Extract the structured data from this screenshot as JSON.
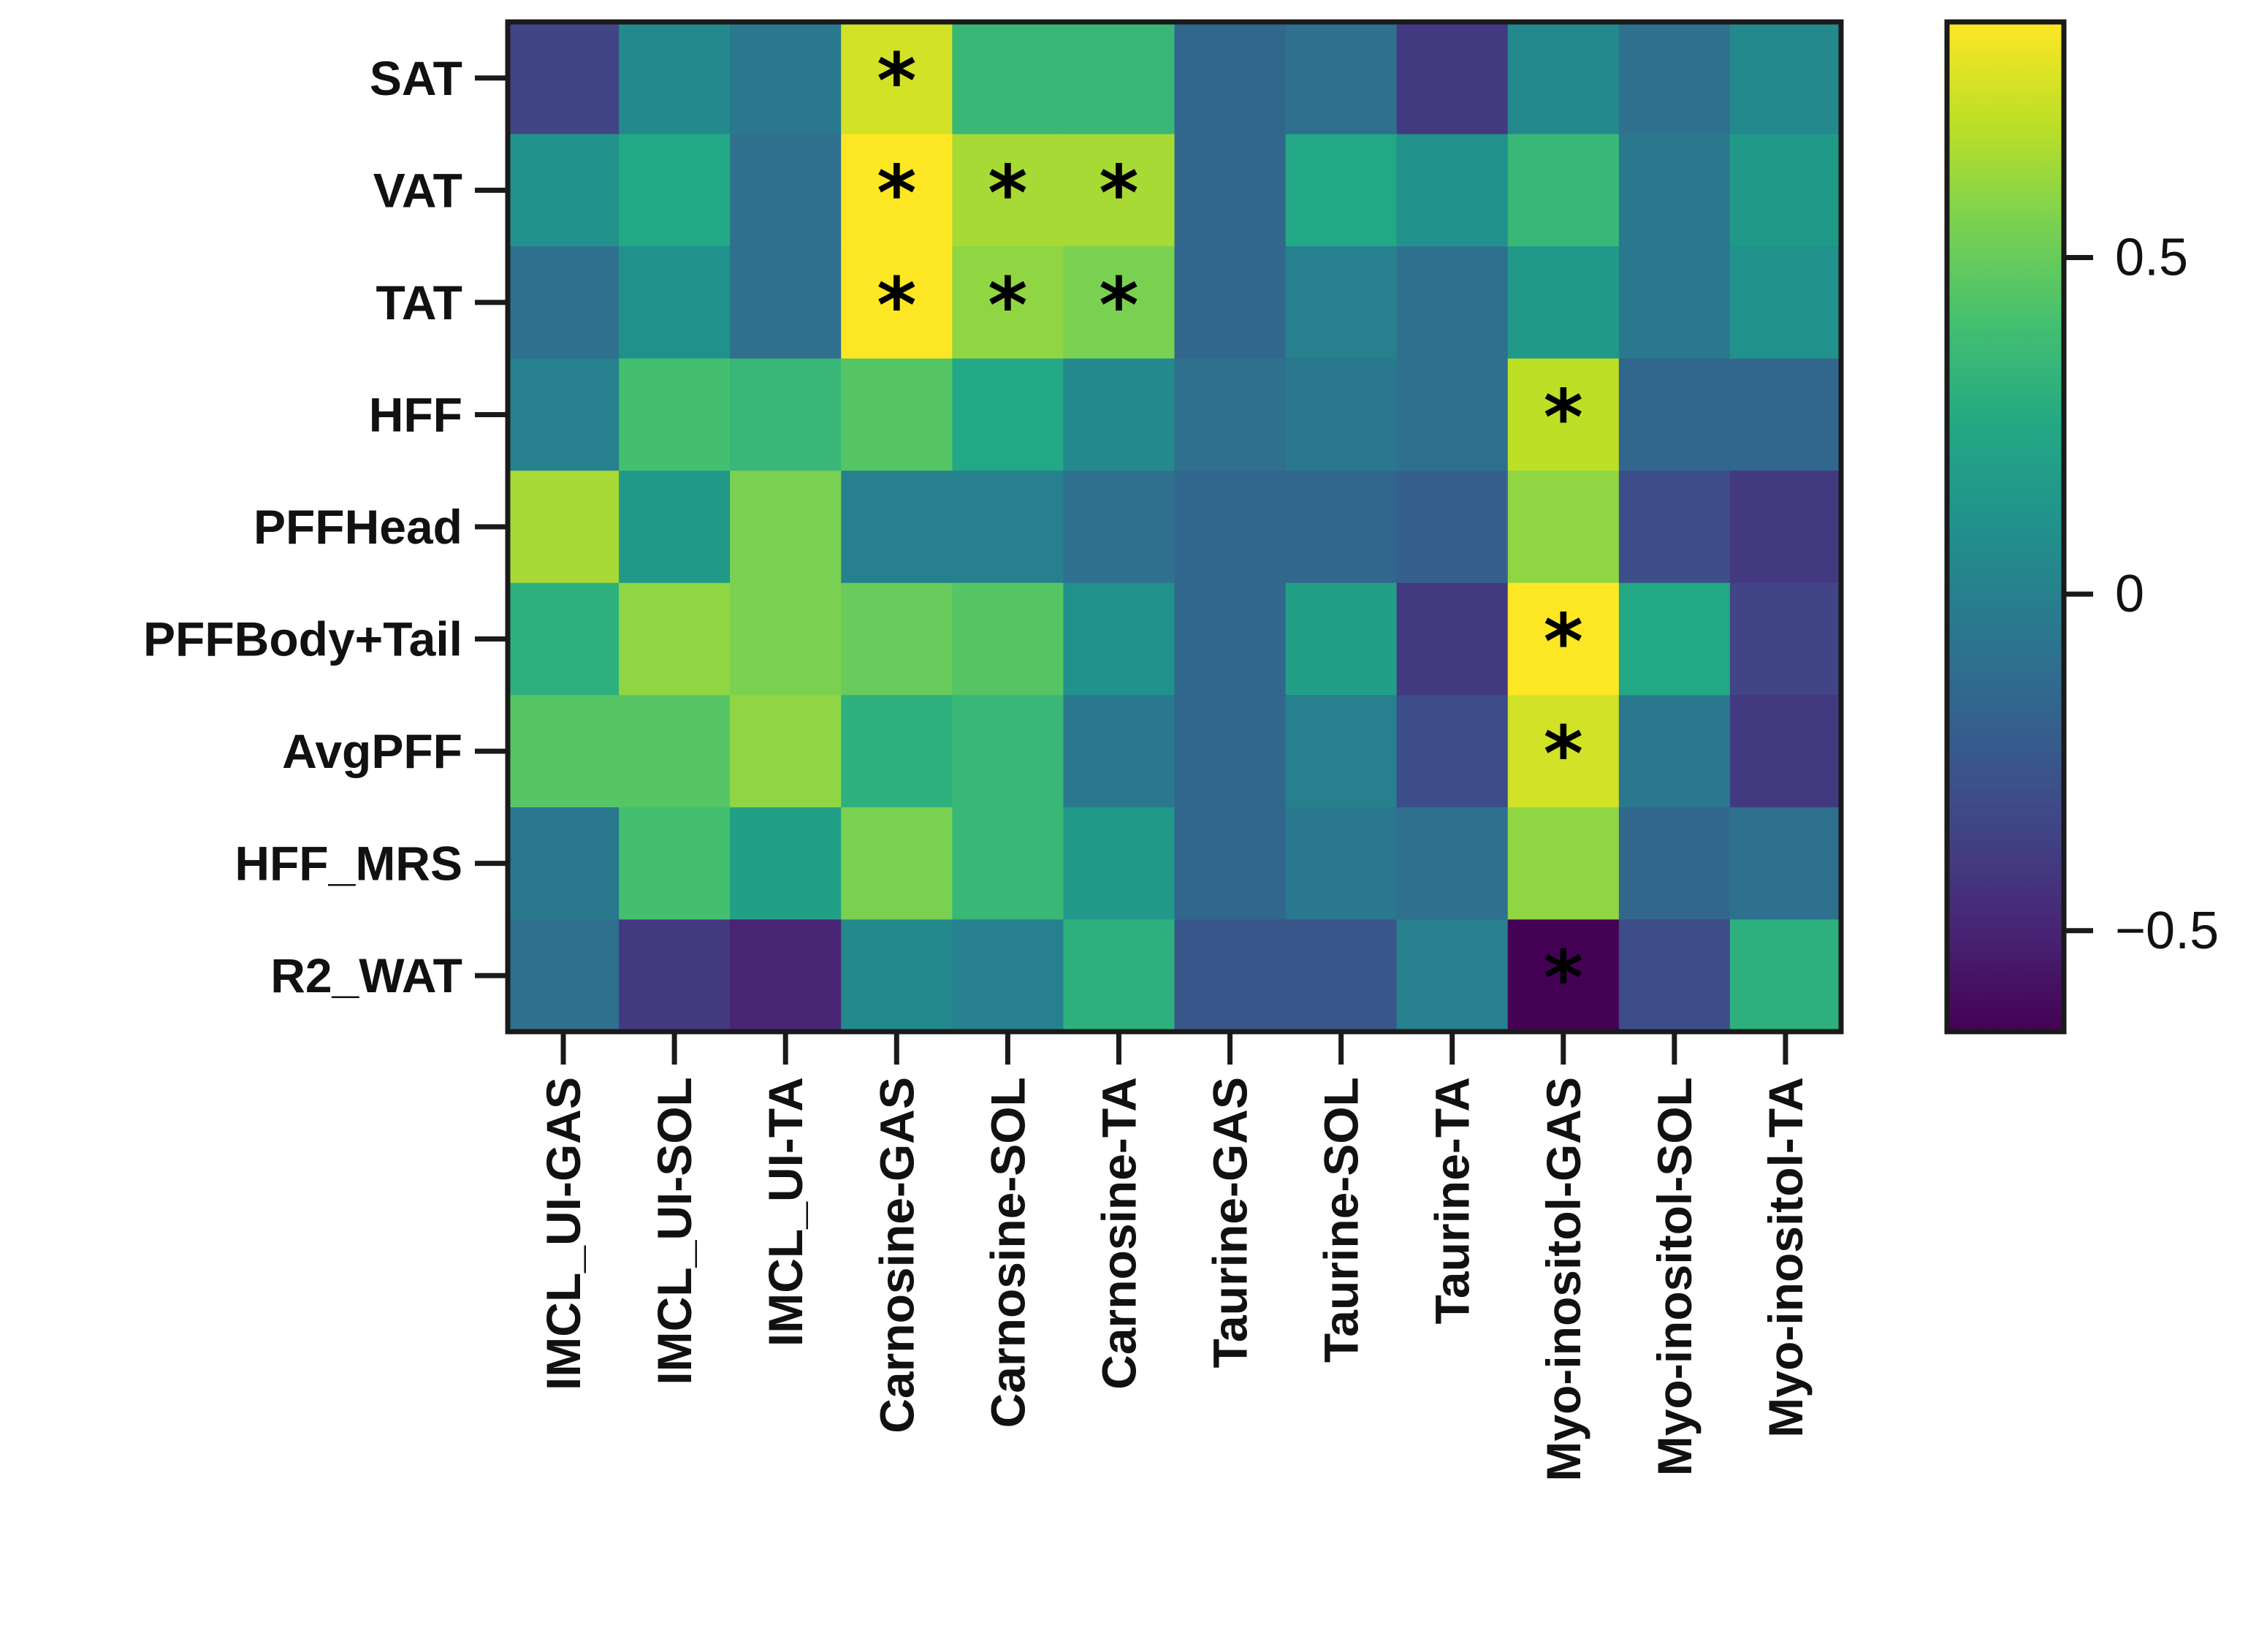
{
  "chart_data": {
    "type": "heatmap",
    "title": "",
    "xlabel": "",
    "ylabel": "",
    "rows": [
      "SAT",
      "VAT",
      "TAT",
      "HFF",
      "PFFHead",
      "PFFBody+Tail",
      "AvgPFF",
      "HFF_MRS",
      "R2_WAT"
    ],
    "columns": [
      "IMCL_UI-GAS",
      "IMCL_UI-SOL",
      "IMCL_UI-TA",
      "Carnosine-GAS",
      "Carnosine-SOL",
      "Carnosine-TA",
      "Taurine-GAS",
      "Taurine-SOL",
      "Taurine-TA",
      "Myo-inositol-GAS",
      "Myo-inositol-SOL",
      "Myo-inositol-TA"
    ],
    "values": [
      [
        -0.35,
        0.05,
        -0.05,
        0.75,
        0.35,
        0.35,
        -0.15,
        -0.1,
        -0.4,
        0.05,
        -0.1,
        0.05
      ],
      [
        0.1,
        0.25,
        -0.1,
        0.85,
        0.65,
        0.65,
        -0.15,
        0.25,
        0.1,
        0.35,
        -0.05,
        0.15
      ],
      [
        -0.1,
        0.1,
        -0.1,
        0.85,
        0.6,
        0.55,
        -0.15,
        0.0,
        -0.1,
        0.15,
        -0.05,
        0.1
      ],
      [
        0.0,
        0.4,
        0.35,
        0.45,
        0.25,
        0.05,
        -0.1,
        -0.05,
        -0.1,
        0.7,
        -0.15,
        -0.15
      ],
      [
        0.65,
        0.15,
        0.55,
        0.0,
        0.0,
        -0.1,
        -0.15,
        -0.15,
        -0.2,
        0.6,
        -0.3,
        -0.4
      ],
      [
        0.3,
        0.6,
        0.55,
        0.5,
        0.45,
        0.1,
        -0.15,
        0.2,
        -0.4,
        0.85,
        0.25,
        -0.35
      ],
      [
        0.45,
        0.45,
        0.6,
        0.3,
        0.35,
        -0.05,
        -0.15,
        0.0,
        -0.3,
        0.75,
        -0.05,
        -0.4
      ],
      [
        -0.05,
        0.4,
        0.2,
        0.55,
        0.35,
        0.15,
        -0.15,
        -0.05,
        -0.1,
        0.6,
        -0.15,
        -0.1
      ],
      [
        -0.1,
        -0.4,
        -0.5,
        0.05,
        0.0,
        0.3,
        -0.25,
        -0.25,
        0.0,
        -0.65,
        -0.3,
        0.3
      ]
    ],
    "significance_marker": "*",
    "significant_cells": [
      [
        0,
        3
      ],
      [
        1,
        3
      ],
      [
        1,
        4
      ],
      [
        1,
        5
      ],
      [
        2,
        3
      ],
      [
        2,
        4
      ],
      [
        2,
        5
      ],
      [
        3,
        9
      ],
      [
        5,
        9
      ],
      [
        6,
        9
      ],
      [
        8,
        9
      ]
    ],
    "colormap": "viridis",
    "color_range": [
      -0.65,
      0.85
    ],
    "colorbar_ticks": [
      {
        "value": 0.5,
        "label": "0.5"
      },
      {
        "value": 0,
        "label": "0"
      },
      {
        "value": -0.5,
        "label": "−0.5"
      }
    ],
    "legend_position": "right"
  }
}
